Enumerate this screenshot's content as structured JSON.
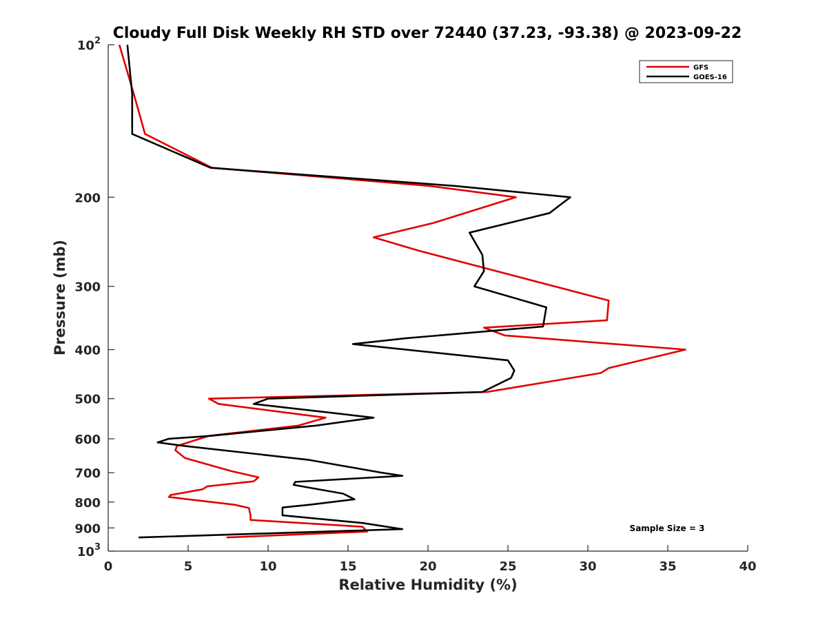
{
  "chart_data": {
    "type": "line",
    "title": "Cloudy Full Disk Weekly RH STD over 72440 (37.23, -93.38) @ 2023-09-22",
    "xlabel": "Relative Humidity (%)",
    "ylabel": "Pressure (mb)",
    "xlim": [
      0,
      40
    ],
    "ylim": [
      100,
      1000
    ],
    "y_scale": "log",
    "y_reversed": true,
    "x_ticks": [
      "0",
      "5",
      "10",
      "15",
      "20",
      "25",
      "30",
      "35",
      "40"
    ],
    "y_ticks": [
      {
        "value": 100,
        "base": "10",
        "exp": "2"
      },
      {
        "value": 200,
        "label": "200"
      },
      {
        "value": 300,
        "label": "300"
      },
      {
        "value": 400,
        "label": "400"
      },
      {
        "value": 500,
        "label": "500"
      },
      {
        "value": 600,
        "label": "600"
      },
      {
        "value": 700,
        "label": "700"
      },
      {
        "value": 800,
        "label": "800"
      },
      {
        "value": 900,
        "label": "900"
      },
      {
        "value": 1000,
        "base": "10",
        "exp": "3"
      }
    ],
    "grid": false,
    "legend_position": "top-right",
    "series": [
      {
        "name": "GFS",
        "color": "#e00000",
        "points": [
          [
            0.7,
            100
          ],
          [
            1.6,
            125
          ],
          [
            2.3,
            150
          ],
          [
            6.5,
            175
          ],
          [
            20.1,
            190
          ],
          [
            25.5,
            200
          ],
          [
            20.3,
            225
          ],
          [
            16.6,
            240
          ],
          [
            19.4,
            255
          ],
          [
            31.3,
            320
          ],
          [
            31.2,
            350
          ],
          [
            23.5,
            362
          ],
          [
            24.8,
            375
          ],
          [
            36.1,
            400
          ],
          [
            31.3,
            435
          ],
          [
            30.8,
            445
          ],
          [
            23.7,
            485
          ],
          [
            6.3,
            500
          ],
          [
            6.9,
            512
          ],
          [
            13.6,
            545
          ],
          [
            11.9,
            565
          ],
          [
            6.3,
            592
          ],
          [
            4.3,
            620
          ],
          [
            4.2,
            632
          ],
          [
            4.8,
            655
          ],
          [
            7.7,
            695
          ],
          [
            9.4,
            715
          ],
          [
            9.1,
            728
          ],
          [
            6.2,
            745
          ],
          [
            5.9,
            755
          ],
          [
            3.9,
            775
          ],
          [
            3.8,
            782
          ],
          [
            7.9,
            810
          ],
          [
            8.8,
            822
          ],
          [
            8.9,
            850
          ],
          [
            8.9,
            868
          ],
          [
            15.9,
            895
          ],
          [
            16.2,
            915
          ],
          [
            7.4,
            940
          ]
        ]
      },
      {
        "name": "GOES-16",
        "color": "#000000",
        "points": [
          [
            1.2,
            100
          ],
          [
            1.5,
            125
          ],
          [
            1.5,
            150
          ],
          [
            6.4,
            175
          ],
          [
            21.7,
            190
          ],
          [
            28.9,
            200
          ],
          [
            27.6,
            215
          ],
          [
            22.6,
            235
          ],
          [
            23.4,
            260
          ],
          [
            23.5,
            280
          ],
          [
            22.9,
            300
          ],
          [
            27.4,
            330
          ],
          [
            27.2,
            360
          ],
          [
            18.6,
            380
          ],
          [
            15.3,
            390
          ],
          [
            25.0,
            420
          ],
          [
            25.4,
            440
          ],
          [
            25.2,
            455
          ],
          [
            23.4,
            485
          ],
          [
            10.0,
            500
          ],
          [
            9.1,
            512
          ],
          [
            16.6,
            545
          ],
          [
            13.0,
            565
          ],
          [
            6.4,
            592
          ],
          [
            3.8,
            600
          ],
          [
            3.1,
            610
          ],
          [
            4.8,
            620
          ],
          [
            12.5,
            660
          ],
          [
            17.1,
            700
          ],
          [
            18.4,
            710
          ],
          [
            11.7,
            730
          ],
          [
            11.6,
            740
          ],
          [
            14.7,
            770
          ],
          [
            15.4,
            790
          ],
          [
            12.6,
            810
          ],
          [
            10.9,
            820
          ],
          [
            10.9,
            850
          ],
          [
            15.9,
            880
          ],
          [
            18.4,
            905
          ],
          [
            1.9,
            940
          ]
        ]
      }
    ],
    "annotations": [
      "Sample Size = 3"
    ]
  }
}
